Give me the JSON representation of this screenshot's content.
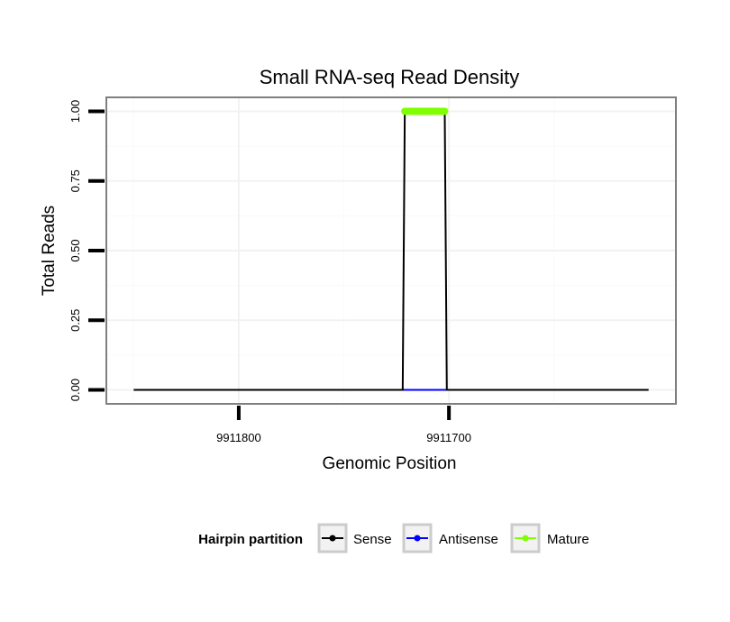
{
  "chart_data": {
    "type": "line",
    "title": "Small RNA-seq Read Density",
    "xlabel": "Genomic Position",
    "ylabel": "Total Reads",
    "x_reversed": true,
    "xlim": [
      9911863,
      9911592
    ],
    "ylim": [
      -0.05,
      1.05
    ],
    "x_ticks": [
      9911800,
      9911700
    ],
    "x_tick_labels": [
      "9911800",
      "9911700"
    ],
    "y_ticks": [
      0,
      0.25,
      0.5,
      0.75,
      1.0
    ],
    "y_tick_labels": [
      "0.00",
      "0.25",
      "0.50",
      "0.75",
      "1.00"
    ],
    "grid": true,
    "legend": {
      "title": "Hairpin partition",
      "position": "bottom",
      "entries": [
        {
          "name": "Sense",
          "color": "#000000"
        },
        {
          "name": "Antisense",
          "color": "#0000ff"
        },
        {
          "name": "Mature",
          "color": "#7fff00"
        }
      ]
    },
    "series": [
      {
        "name": "Sense",
        "color": "#000000",
        "x": [
          9911850,
          9911722,
          9911721,
          9911702,
          9911701,
          9911605
        ],
        "y": [
          0,
          0,
          1,
          1,
          0,
          0
        ]
      },
      {
        "name": "Antisense",
        "color": "#0000ff",
        "x": [
          9911722,
          9911701
        ],
        "y": [
          0,
          0
        ]
      },
      {
        "name": "Mature",
        "color": "#7fff00",
        "x": [
          9911721,
          9911702
        ],
        "y": [
          1,
          1
        ]
      }
    ]
  }
}
